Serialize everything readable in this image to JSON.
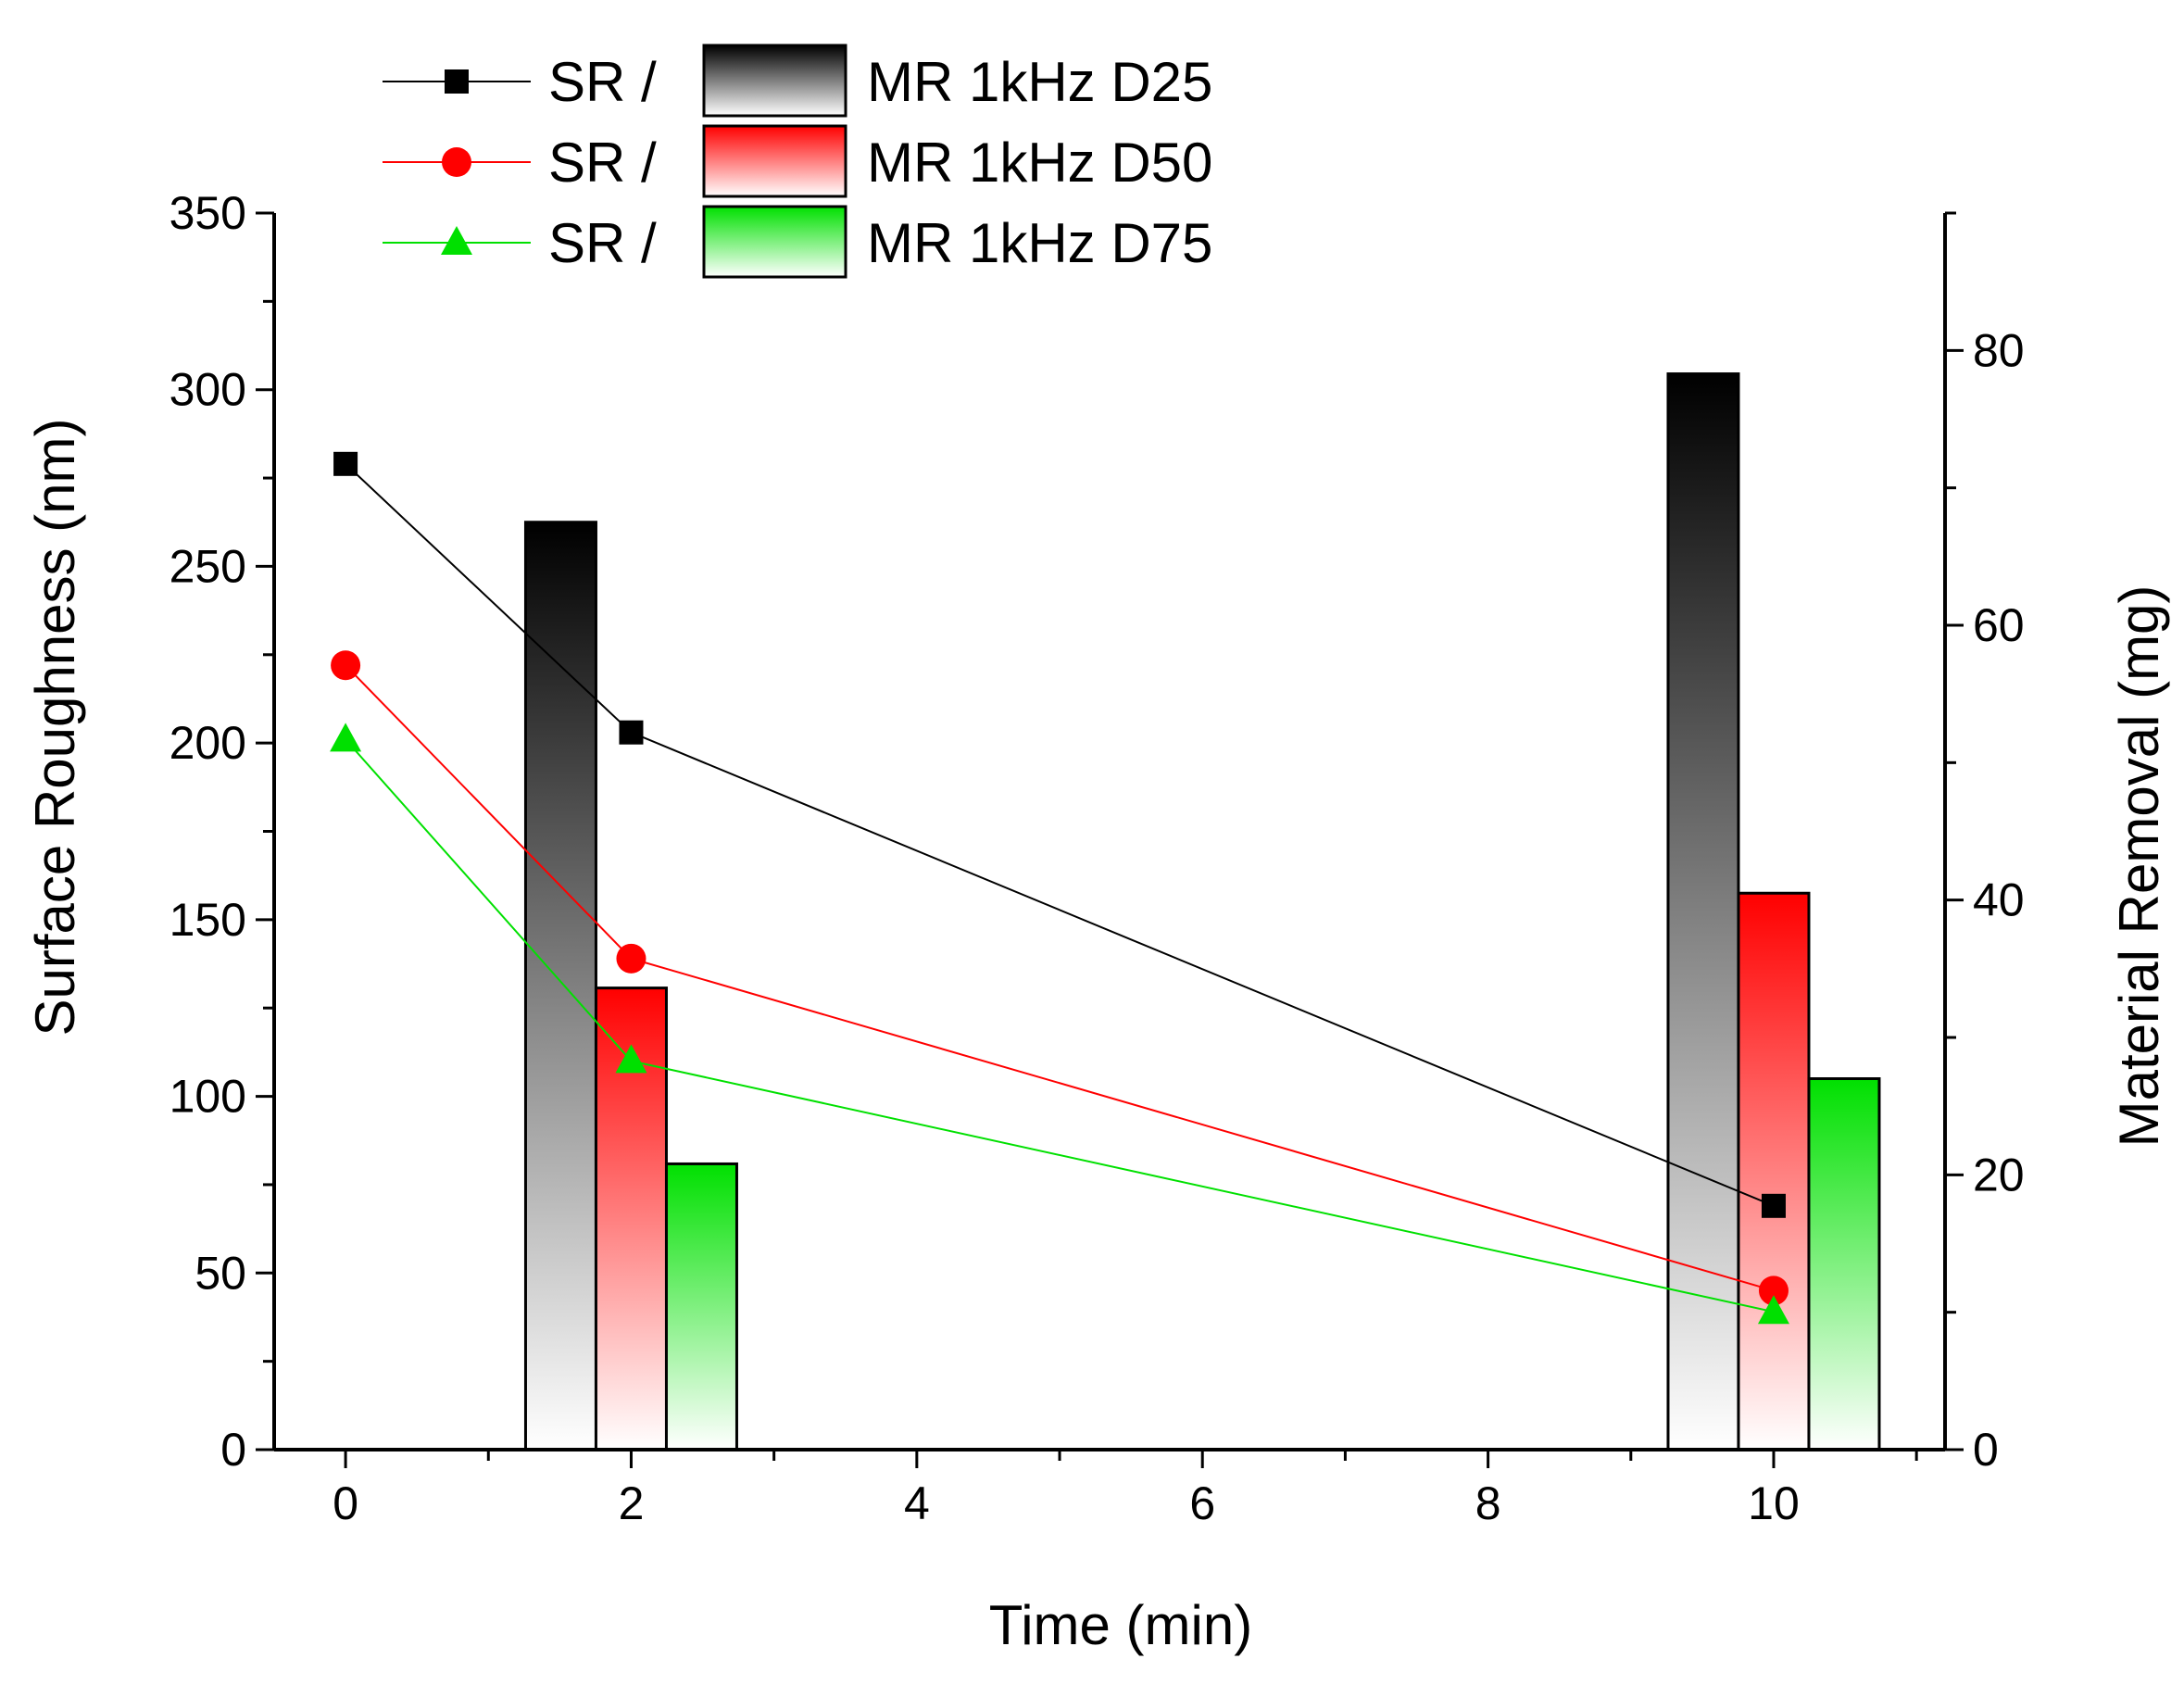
{
  "chart_data": {
    "type": "bar+line",
    "x_axis": {
      "label": "Time (min)",
      "range": [
        -0.5,
        11.2
      ],
      "ticks": [
        0,
        2,
        4,
        6,
        8,
        10
      ]
    },
    "y_left": {
      "label": "Surface Roughness (nm)",
      "range": [
        0,
        350
      ],
      "ticks": [
        0,
        50,
        100,
        150,
        200,
        250,
        300,
        350
      ]
    },
    "y_right": {
      "label": "Material Removal (mg)",
      "range": [
        0,
        90
      ],
      "ticks": [
        0,
        20,
        40,
        60,
        80
      ]
    },
    "legend": {
      "position": "top-left",
      "prefix": "SR /",
      "entries": [
        "MR 1kHz D25",
        "MR 1kHz D50",
        "MR 1kHz D75"
      ]
    },
    "line_series": [
      {
        "name": "SR 1kHz D25",
        "color": "#000000",
        "marker": "square",
        "x": [
          0,
          2,
          10
        ],
        "values": [
          279,
          203,
          69
        ]
      },
      {
        "name": "SR 1kHz D50",
        "color": "#ff0000",
        "marker": "circle",
        "x": [
          0,
          2,
          10
        ],
        "values": [
          222,
          139,
          45
        ]
      },
      {
        "name": "SR 1kHz D75",
        "color": "#00e000",
        "marker": "triangle",
        "x": [
          0,
          2,
          10
        ],
        "values": [
          201,
          110,
          39
        ]
      }
    ],
    "bar_series": [
      {
        "name": "MR 1kHz D25",
        "color": "#000000",
        "x": [
          2,
          10
        ],
        "values": [
          67.5,
          78.3
        ]
      },
      {
        "name": "MR 1kHz D50",
        "color": "#ff0000",
        "x": [
          2,
          10
        ],
        "values": [
          33.6,
          40.5
        ]
      },
      {
        "name": "MR 1kHz D75",
        "color": "#00e000",
        "x": [
          2,
          10
        ],
        "values": [
          20.8,
          27.0
        ]
      }
    ]
  }
}
